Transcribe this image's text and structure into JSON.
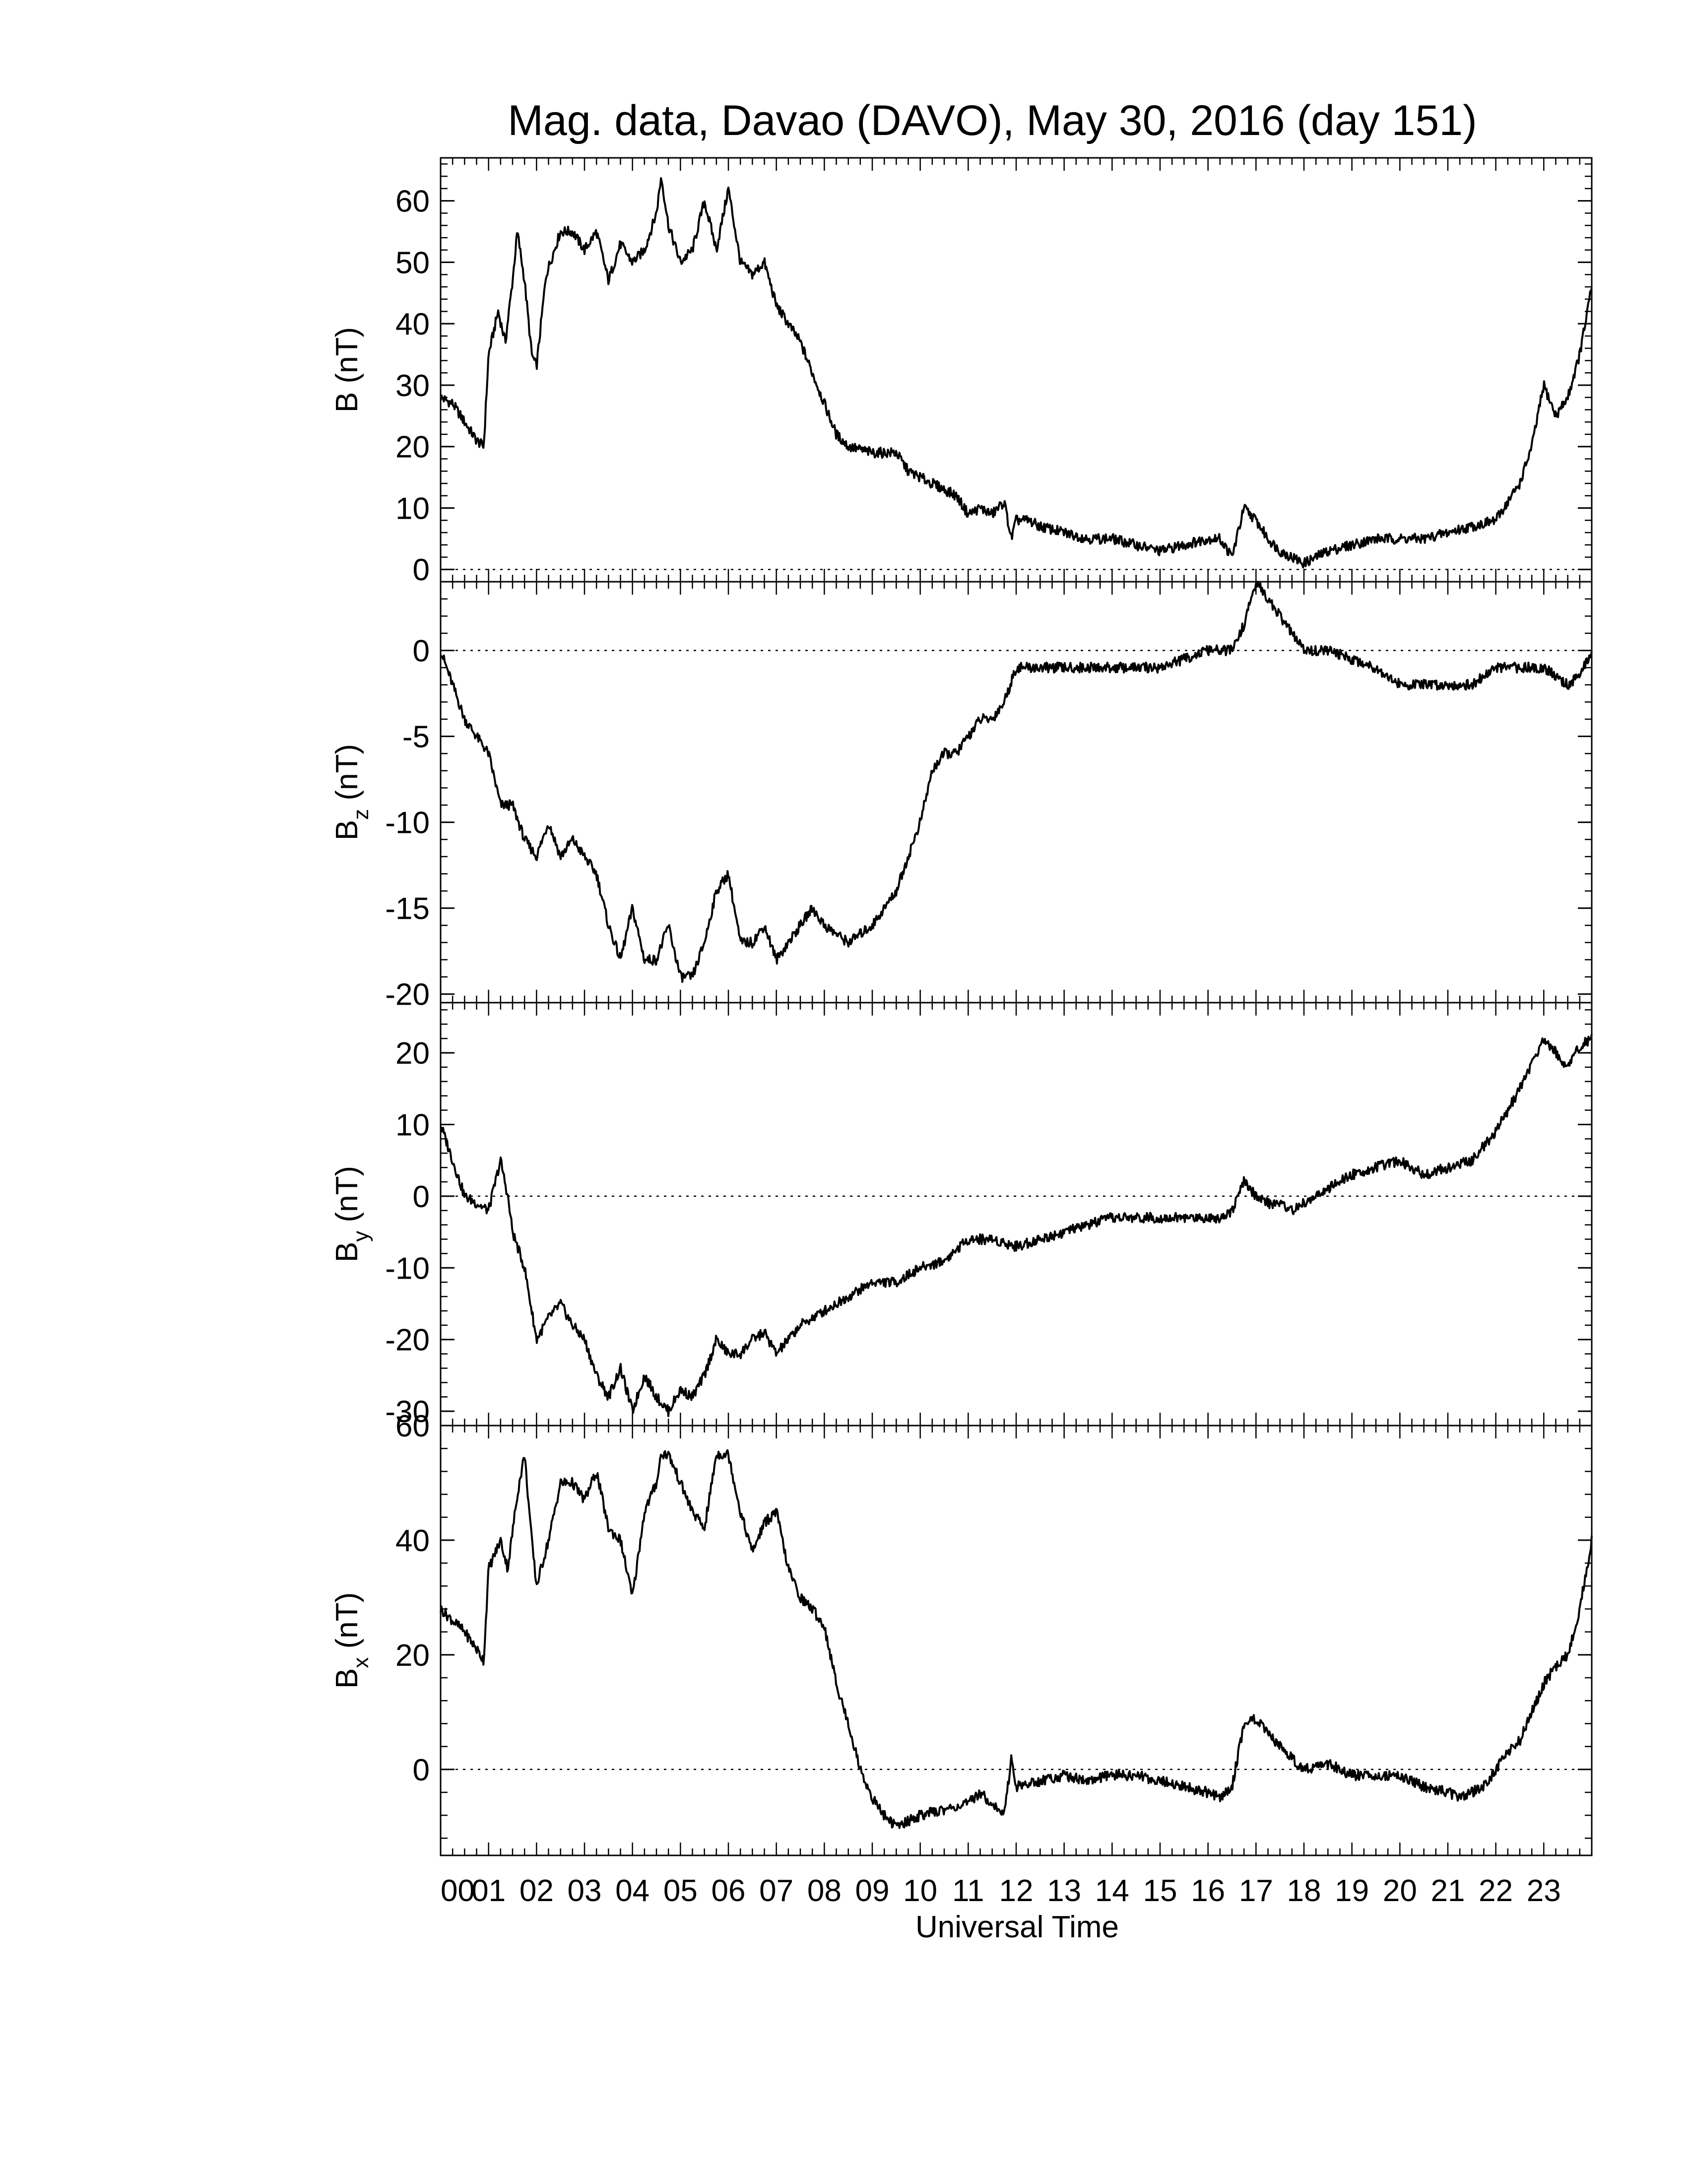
{
  "chart_data": {
    "type": "line",
    "title": "Mag. data, Davao (DAVO), May 30, 2016 (day 151)",
    "xlabel": "Universal Time",
    "xlim": [
      0,
      24
    ],
    "x_tick_labels": [
      "00",
      "01",
      "02",
      "03",
      "04",
      "05",
      "06",
      "07",
      "08",
      "09",
      "10",
      "11",
      "12",
      "13",
      "14",
      "15",
      "16",
      "17",
      "18",
      "19",
      "20",
      "21",
      "22",
      "23"
    ],
    "grid": false,
    "line_color": "#000000",
    "zero_line": "dotted",
    "panels": [
      {
        "id": "B",
        "ylabel_main": "B",
        "ylabel_sub": "",
        "ylabel_unit": " (nT)",
        "ylim": [
          -2,
          67
        ],
        "yticks": [
          0,
          10,
          20,
          30,
          40,
          50,
          60
        ],
        "series": [
          {
            "x": [
              0,
              0.25,
              0.5,
              0.75,
              0.9,
              1.0,
              1.2,
              1.35,
              1.5,
              1.6,
              1.75,
              1.9,
              2.0,
              2.2,
              2.5,
              2.75,
              3.0,
              3.25,
              3.5,
              3.75,
              4.0,
              4.25,
              4.5,
              4.6,
              4.75,
              5.0,
              5.25,
              5.5,
              5.75,
              6.0,
              6.25,
              6.5,
              6.75,
              7.0,
              7.25,
              7.5,
              7.75,
              8.0,
              8.25,
              8.5,
              9.0,
              9.5,
              9.75,
              10.0,
              10.25,
              10.5,
              10.75,
              11.0,
              11.25,
              11.5,
              11.75,
              11.9,
              12.0,
              12.25,
              12.5,
              13.0,
              13.5,
              14.0,
              14.5,
              15.0,
              15.5,
              16.0,
              16.25,
              16.5,
              16.75,
              17.0,
              17.25,
              17.5,
              17.75,
              18.0,
              18.25,
              18.5,
              19.0,
              19.5,
              20.0,
              20.5,
              21.0,
              21.5,
              22.0,
              22.25,
              22.5,
              22.75,
              23.0,
              23.25,
              23.5,
              23.75,
              24.0
            ],
            "values": [
              28,
              27,
              24,
              21,
              20,
              35,
              42,
              37,
              47,
              55,
              47,
              35,
              33,
              48,
              55,
              55,
              52,
              55,
              47,
              53,
              50,
              52,
              58,
              64,
              56,
              50,
              52,
              60,
              52,
              62,
              50,
              48,
              50,
              43,
              40,
              37,
              32,
              27,
              22,
              20,
              19,
              19,
              16,
              15,
              14,
              13,
              12,
              9,
              10,
              9,
              11,
              5,
              8,
              8,
              7,
              6,
              5,
              5,
              4,
              3,
              4,
              5,
              5,
              2,
              10,
              8,
              5,
              3,
              2,
              1,
              2,
              3,
              4,
              5,
              5,
              5,
              6,
              7,
              8,
              11,
              14,
              20,
              30,
              25,
              28,
              35,
              46
            ]
          }
        ]
      },
      {
        "id": "Bz",
        "ylabel_main": "B",
        "ylabel_sub": "z",
        "ylabel_unit": " (nT)",
        "ylim": [
          -20.5,
          4
        ],
        "yticks": [
          -20,
          -15,
          -10,
          -5,
          0
        ],
        "series": [
          {
            "x": [
              0,
              0.25,
              0.5,
              0.75,
              1.0,
              1.25,
              1.5,
              1.75,
              2.0,
              2.25,
              2.5,
              2.75,
              3.0,
              3.25,
              3.5,
              3.75,
              4.0,
              4.25,
              4.5,
              4.75,
              5.0,
              5.25,
              5.5,
              5.75,
              6.0,
              6.25,
              6.5,
              6.75,
              7.0,
              7.25,
              7.5,
              7.75,
              8.0,
              8.5,
              9.0,
              9.5,
              9.75,
              10.0,
              10.25,
              10.5,
              10.75,
              11.0,
              11.25,
              11.5,
              11.75,
              12.0,
              12.25,
              12.5,
              13.0,
              13.5,
              14.0,
              14.5,
              15.0,
              15.5,
              16.0,
              16.25,
              16.5,
              16.75,
              17.0,
              17.25,
              17.5,
              17.75,
              18.0,
              18.5,
              19.0,
              19.5,
              20.0,
              20.5,
              21.0,
              21.5,
              22.0,
              22.5,
              23.0,
              23.5,
              23.75,
              24.0
            ],
            "values": [
              0,
              -2,
              -4,
              -5,
              -6,
              -9,
              -9,
              -11,
              -12,
              -10,
              -12,
              -11,
              -12,
              -13,
              -16,
              -18,
              -15,
              -18,
              -18,
              -16,
              -19,
              -19,
              -17,
              -14,
              -13,
              -17,
              -17,
              -16,
              -18,
              -17,
              -16,
              -15,
              -16,
              -17,
              -16,
              -14,
              -12,
              -10,
              -7,
              -6,
              -6,
              -5,
              -4,
              -4,
              -3,
              -1,
              -1,
              -1,
              -1,
              -1,
              -1,
              -1,
              -1,
              -0.5,
              0,
              0,
              0,
              1.5,
              4,
              3,
              2,
              1,
              0,
              0,
              -0.5,
              -1,
              -2,
              -2,
              -2,
              -2,
              -1,
              -1,
              -1,
              -2,
              -1.5,
              0
            ]
          }
        ]
      },
      {
        "id": "By",
        "ylabel_main": "B",
        "ylabel_sub": "y",
        "ylabel_unit": " (nT)",
        "ylim": [
          -32,
          27
        ],
        "yticks": [
          -30,
          -20,
          -10,
          0,
          10,
          20
        ],
        "series": [
          {
            "x": [
              0,
              0.25,
              0.5,
              0.75,
              1.0,
              1.25,
              1.4,
              1.5,
              1.75,
              2.0,
              2.25,
              2.5,
              2.75,
              3.0,
              3.25,
              3.5,
              3.75,
              4.0,
              4.25,
              4.5,
              4.75,
              5.0,
              5.25,
              5.5,
              5.75,
              6.0,
              6.25,
              6.5,
              6.75,
              7.0,
              7.25,
              7.5,
              8.0,
              8.5,
              9.0,
              9.5,
              10.0,
              10.5,
              11.0,
              11.5,
              12.0,
              12.5,
              13.0,
              13.5,
              14.0,
              14.5,
              15.0,
              15.5,
              16.0,
              16.25,
              16.5,
              16.75,
              17.0,
              17.25,
              17.5,
              17.75,
              18.0,
              18.5,
              19.0,
              19.5,
              20.0,
              20.5,
              21.0,
              21.5,
              22.0,
              22.5,
              23.0,
              23.25,
              23.5,
              23.75,
              24.0
            ],
            "values": [
              10,
              5,
              0,
              -1,
              -2,
              5,
              0,
              -5,
              -10,
              -20,
              -17,
              -15,
              -18,
              -20,
              -25,
              -28,
              -24,
              -30,
              -25,
              -28,
              -30,
              -27,
              -28,
              -25,
              -20,
              -22,
              -22,
              -20,
              -19,
              -22,
              -20,
              -18,
              -16,
              -14,
              -12,
              -12,
              -10,
              -9,
              -6,
              -6,
              -7,
              -6,
              -5,
              -4,
              -3,
              -3,
              -3,
              -3,
              -3,
              -3,
              -2,
              2,
              0,
              -1,
              -1,
              -2,
              -1,
              1,
              3,
              4,
              5,
              3,
              4,
              5,
              9,
              15,
              22,
              20,
              18,
              21,
              22
            ]
          }
        ]
      },
      {
        "id": "Bx",
        "ylabel_main": "B",
        "ylabel_sub": "x",
        "ylabel_unit": " (nT)",
        "ylim": [
          -15,
          60
        ],
        "yticks": [
          0,
          20,
          40,
          60
        ],
        "series": [
          {
            "x": [
              0,
              0.25,
              0.5,
              0.75,
              0.9,
              1.0,
              1.25,
              1.4,
              1.6,
              1.75,
              1.9,
              2.0,
              2.25,
              2.5,
              2.75,
              3.0,
              3.25,
              3.5,
              3.75,
              4.0,
              4.25,
              4.5,
              4.6,
              4.75,
              5.0,
              5.25,
              5.5,
              5.75,
              6.0,
              6.25,
              6.5,
              6.75,
              7.0,
              7.25,
              7.5,
              7.75,
              8.0,
              8.25,
              8.5,
              8.75,
              9.0,
              9.25,
              9.5,
              9.75,
              10.0,
              10.5,
              11.0,
              11.25,
              11.5,
              11.75,
              11.9,
              12.0,
              12.5,
              13.0,
              13.5,
              14.0,
              14.5,
              15.0,
              15.5,
              16.0,
              16.25,
              16.5,
              16.75,
              17.0,
              17.25,
              17.5,
              17.75,
              18.0,
              18.5,
              19.0,
              19.5,
              20.0,
              20.5,
              21.0,
              21.25,
              21.5,
              21.75,
              22.0,
              22.25,
              22.5,
              22.75,
              23.0,
              23.25,
              23.5,
              23.75,
              24.0
            ],
            "values": [
              28,
              26,
              24,
              21,
              19,
              35,
              40,
              35,
              48,
              55,
              40,
              32,
              40,
              50,
              50,
              47,
              52,
              42,
              40,
              30,
              45,
              50,
              55,
              55,
              50,
              45,
              42,
              55,
              55,
              45,
              38,
              43,
              45,
              35,
              30,
              28,
              25,
              15,
              8,
              0,
              -5,
              -8,
              -10,
              -9,
              -8,
              -7,
              -6,
              -4,
              -6,
              -8,
              2,
              -3,
              -2,
              -1,
              -2,
              -1,
              -1,
              -2,
              -3,
              -4,
              -5,
              -3,
              8,
              9,
              6,
              4,
              2,
              0,
              1,
              -1,
              -1,
              -1,
              -3,
              -4,
              -5,
              -4,
              -3,
              0,
              3,
              5,
              10,
              15,
              18,
              20,
              28,
              40
            ]
          }
        ]
      }
    ]
  }
}
